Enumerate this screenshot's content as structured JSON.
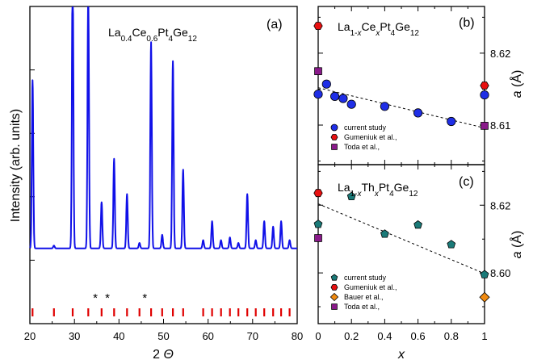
{
  "chart_data": [
    {
      "type": "line",
      "panel_label": "(a)",
      "title_parts": [
        [
          "La",
          "n"
        ],
        [
          "0.4",
          "s"
        ],
        [
          "Ce",
          "n"
        ],
        [
          "0.6",
          "s"
        ],
        [
          "Pt",
          "n"
        ],
        [
          "4",
          "s"
        ],
        [
          "Ge",
          "n"
        ],
        [
          "12",
          "s"
        ]
      ],
      "xlabel": "2 ",
      "xlabel_symbol": "Θ",
      "ylabel": "Intensity (arb. units)",
      "xlim": [
        20,
        80
      ],
      "xticks": [
        20,
        30,
        40,
        50,
        60,
        70,
        80
      ],
      "ylim": [
        0,
        1
      ],
      "baseline": 0.12,
      "peaks": [
        {
          "x": 20.6,
          "h": 0.62
        },
        {
          "x": 25.4,
          "h": 0.01
        },
        {
          "x": 29.6,
          "h": 1.05
        },
        {
          "x": 33.1,
          "h": 0.96
        },
        {
          "x": 36.1,
          "h": 0.17
        },
        {
          "x": 38.9,
          "h": 0.33
        },
        {
          "x": 41.8,
          "h": 0.2
        },
        {
          "x": 44.6,
          "h": 0.02
        },
        {
          "x": 47.2,
          "h": 0.76
        },
        {
          "x": 49.7,
          "h": 0.05
        },
        {
          "x": 52.1,
          "h": 0.69
        },
        {
          "x": 54.4,
          "h": 0.29
        },
        {
          "x": 58.9,
          "h": 0.03
        },
        {
          "x": 60.9,
          "h": 0.1
        },
        {
          "x": 62.9,
          "h": 0.03
        },
        {
          "x": 64.9,
          "h": 0.04
        },
        {
          "x": 66.8,
          "h": 0.02
        },
        {
          "x": 68.8,
          "h": 0.2
        },
        {
          "x": 70.7,
          "h": 0.03
        },
        {
          "x": 72.6,
          "h": 0.1
        },
        {
          "x": 74.6,
          "h": 0.08
        },
        {
          "x": 76.4,
          "h": 0.1
        },
        {
          "x": 78.3,
          "h": 0.03
        }
      ],
      "impurity_marks": [
        "*",
        "*",
        "*"
      ],
      "impurity_x": [
        34.7,
        37.4,
        45.8
      ],
      "reflection_ticks": [
        20.6,
        25.4,
        29.6,
        33.1,
        36.1,
        38.9,
        41.8,
        44.6,
        47.2,
        49.7,
        52.1,
        54.4,
        58.9,
        60.9,
        62.9,
        64.9,
        66.8,
        68.8,
        70.7,
        72.6,
        74.6,
        76.4,
        78.3
      ],
      "tick_color": "#e00000",
      "line_color": "#1010e8"
    },
    {
      "type": "scatter",
      "panel_label": "(b)",
      "title_parts": [
        [
          "La",
          "n"
        ],
        [
          "1-",
          "s"
        ],
        [
          "x",
          "si"
        ],
        [
          "Ce",
          "n"
        ],
        [
          "x",
          "si"
        ],
        [
          "Pt",
          "n"
        ],
        [
          "4",
          "s"
        ],
        [
          "Ge",
          "n"
        ],
        [
          "12",
          "s"
        ]
      ],
      "ylabel_symbol": "a",
      "ylabel_unit": " (Å)",
      "xlim": [
        0,
        1
      ],
      "ylim": [
        8.6045,
        8.6265
      ],
      "yticks": [
        8.61,
        8.62
      ],
      "yticklabels": [
        "8.61",
        "8.62"
      ],
      "fit_line": {
        "x": [
          0,
          1
        ],
        "y": [
          8.6152,
          8.6096
        ]
      },
      "series": [
        {
          "name": "current study",
          "marker": "circle",
          "color": "#1f2ee6",
          "x": [
            0,
            0.05,
            0.1,
            0.15,
            0.2,
            0.4,
            0.6,
            0.8,
            1.0
          ],
          "y": [
            8.6143,
            8.6157,
            8.614,
            8.6137,
            8.6129,
            8.6126,
            8.6117,
            8.6105,
            8.6142
          ]
        },
        {
          "name": "Gumeniuk et al.,",
          "marker": "hexagon",
          "color": "#e81010",
          "x": [
            0,
            1
          ],
          "y": [
            8.6238,
            8.6155
          ]
        },
        {
          "name": "Toda et al.,",
          "marker": "square",
          "color": "#8a1a8a",
          "x": [
            0,
            1
          ],
          "y": [
            8.6175,
            8.6099
          ]
        }
      ]
    },
    {
      "type": "scatter",
      "panel_label": "(c)",
      "title_parts": [
        [
          "La",
          "n"
        ],
        [
          "1-",
          "s"
        ],
        [
          "x",
          "si"
        ],
        [
          "Th",
          "n"
        ],
        [
          "x",
          "si"
        ],
        [
          "Pt",
          "n"
        ],
        [
          "4",
          "s"
        ],
        [
          "Ge",
          "n"
        ],
        [
          "12",
          "s"
        ]
      ],
      "xlabel": "x",
      "ylabel_symbol": "a",
      "ylabel_unit": " (Å)",
      "xlim": [
        0,
        1
      ],
      "xticks": [
        0,
        0.2,
        0.4,
        0.6,
        0.8,
        1
      ],
      "xticklabels": [
        "0",
        "0.2",
        "0.4",
        "0.6",
        "0.8",
        "1"
      ],
      "ylim": [
        8.585,
        8.632
      ],
      "yticks": [
        8.6,
        8.62
      ],
      "yticklabels": [
        "8.60",
        "8.62"
      ],
      "fit_line": {
        "x": [
          0,
          1
        ],
        "y": [
          8.6204,
          8.5998
        ]
      },
      "series": [
        {
          "name": "current study",
          "marker": "pentagon",
          "color": "#1a7a78",
          "x": [
            0,
            0.2,
            0.4,
            0.6,
            0.8,
            1.0
          ],
          "y": [
            8.6144,
            8.6226,
            8.6115,
            8.6142,
            8.6084,
            8.5995
          ]
        },
        {
          "name": "Gumeniuk et al.,",
          "marker": "hexagon",
          "color": "#e81010",
          "x": [
            0
          ],
          "y": [
            8.6236
          ]
        },
        {
          "name": "Bauer et al.,",
          "marker": "diamond",
          "color": "#f08a10",
          "x": [
            1
          ],
          "y": [
            8.5928
          ]
        },
        {
          "name": "Toda et al.,",
          "marker": "square",
          "color": "#8a1a8a",
          "x": [
            0
          ],
          "y": [
            8.6103
          ]
        }
      ]
    }
  ]
}
